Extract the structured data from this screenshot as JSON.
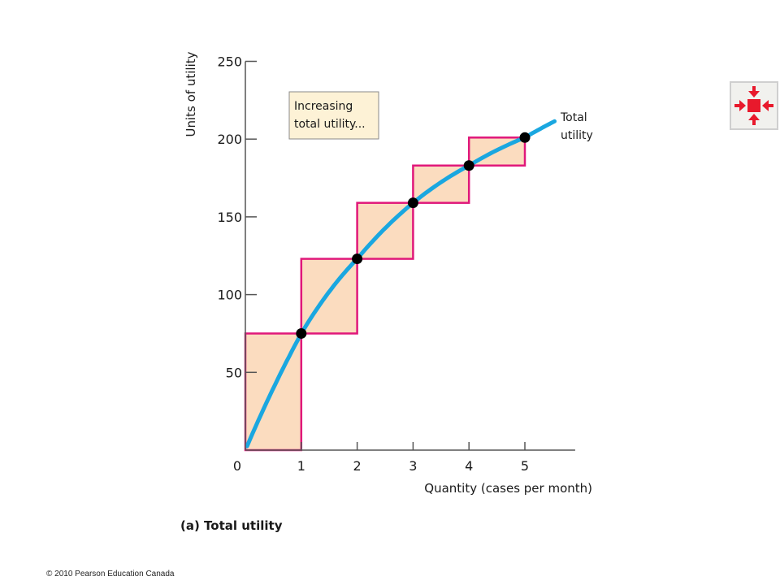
{
  "chart_data": {
    "type": "line",
    "panel_label": "(a) Total utility",
    "xlabel": "Quantity (cases per month)",
    "ylabel": "Units of utility",
    "xlim": [
      0,
      5.9
    ],
    "ylim": [
      0,
      250
    ],
    "x_ticks": [
      "0",
      "1",
      "2",
      "3",
      "4",
      "5"
    ],
    "y_ticks": [
      "50",
      "100",
      "150",
      "200",
      "250"
    ],
    "series": [
      {
        "name": "Total utility",
        "color": "#1aa7e0",
        "points": [
          {
            "x": 1,
            "y": 75
          },
          {
            "x": 2,
            "y": 123
          },
          {
            "x": 3,
            "y": 159
          },
          {
            "x": 4,
            "y": 183
          },
          {
            "x": 5,
            "y": 201
          }
        ]
      }
    ],
    "steps": [
      {
        "x0": 0,
        "x1": 1,
        "y0": 0,
        "y1": 75
      },
      {
        "x0": 1,
        "x1": 2,
        "y0": 75,
        "y1": 123
      },
      {
        "x0": 2,
        "x1": 3,
        "y0": 123,
        "y1": 159
      },
      {
        "x0": 3,
        "x1": 4,
        "y0": 159,
        "y1": 183
      },
      {
        "x0": 4,
        "x1": 5,
        "y0": 183,
        "y1": 201
      }
    ],
    "step_fill": "#fbdcbf",
    "step_stroke": "#e0187a",
    "callout": {
      "lines": [
        "Increasing",
        "total utility..."
      ]
    }
  },
  "footer": {
    "copyright": "© 2010 Pearson Education Canada"
  },
  "nav": {
    "icon": "expand-arrows-icon",
    "color": "#e8192c"
  }
}
